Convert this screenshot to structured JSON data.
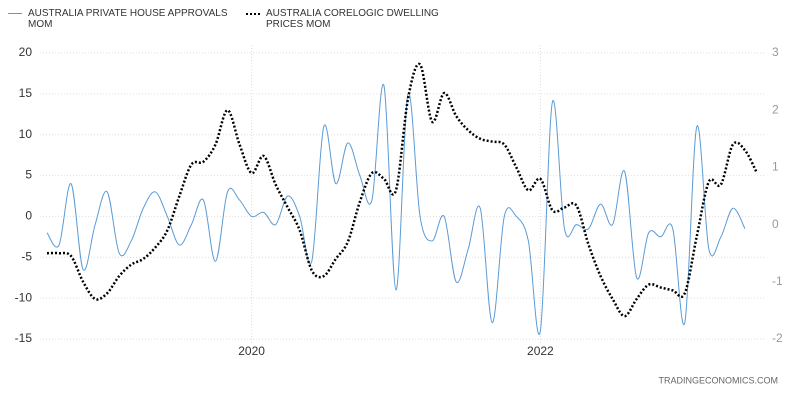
{
  "chart_data": {
    "type": "line",
    "categories": [
      null,
      null,
      null,
      null,
      null,
      null,
      null,
      null,
      null,
      null,
      null,
      null,
      null,
      null,
      null,
      null,
      null,
      "2020",
      null,
      null,
      null,
      null,
      null,
      null,
      null,
      null,
      null,
      null,
      null,
      null,
      null,
      null,
      null,
      null,
      null,
      null,
      null,
      null,
      null,
      null,
      null,
      "2022",
      null,
      null,
      null,
      null,
      null,
      null,
      null,
      null,
      null,
      null,
      null,
      null,
      null,
      null,
      null,
      null,
      null,
      null
    ],
    "series": [
      {
        "name": "AUSTRALIA PRIVATE HOUSE APPROVALS MOM",
        "color": "#5b9bd5",
        "line_style": "solid",
        "values": [
          -2,
          -3.5,
          4,
          -6.5,
          -1,
          3,
          -4.5,
          -3,
          1,
          3,
          0,
          -3.5,
          -1,
          2,
          -5.5,
          3,
          2,
          0,
          0.5,
          -1,
          2.5,
          0,
          -5.5,
          11,
          4,
          9,
          5,
          2,
          16,
          -9,
          15,
          0,
          -3,
          0,
          -8,
          -4,
          1,
          -13,
          0,
          0,
          -3,
          -14,
          14,
          -1.5,
          -1,
          -1.5,
          1.5,
          -1,
          5.5,
          -7.5,
          -2,
          -2.5,
          -1.5,
          -13,
          11,
          -4,
          -2.5,
          1,
          -1.5,
          null
        ]
      },
      {
        "name": "AUSTRALIA CORELOGIC DWELLING PRICES MOM",
        "color": "#000000",
        "line_style": "dotted",
        "axis": "y2",
        "values": [
          -0.5,
          -0.5,
          -0.55,
          -1.0,
          -1.3,
          -1.2,
          -0.9,
          -0.7,
          -0.6,
          -0.4,
          -0.1,
          0.5,
          1.05,
          1.1,
          1.4,
          2.0,
          1.4,
          0.9,
          1.2,
          0.7,
          0.3,
          -0.1,
          -0.8,
          -0.9,
          -0.6,
          -0.3,
          0.4,
          0.9,
          0.8,
          0.6,
          2.2,
          2.8,
          1.8,
          2.3,
          1.9,
          1.65,
          1.5,
          1.45,
          1.4,
          1.0,
          0.6,
          0.8,
          0.25,
          0.3,
          0.33,
          -0.35,
          -0.9,
          -1.3,
          -1.6,
          -1.3,
          -1.05,
          -1.1,
          -1.15,
          -1.2,
          -0.2,
          0.75,
          0.7,
          1.4,
          1.3,
          0.9
        ]
      }
    ],
    "ylim": [
      -15,
      20
    ],
    "yticks": [
      -15,
      -10,
      -5,
      0,
      5,
      10,
      15,
      20
    ],
    "y2lim": [
      -2,
      3
    ],
    "y2ticks": [
      -2,
      -1,
      0,
      1,
      2,
      3
    ],
    "grid": true,
    "legend": "top-left",
    "source": "TRADINGECONOMICS.COM"
  }
}
